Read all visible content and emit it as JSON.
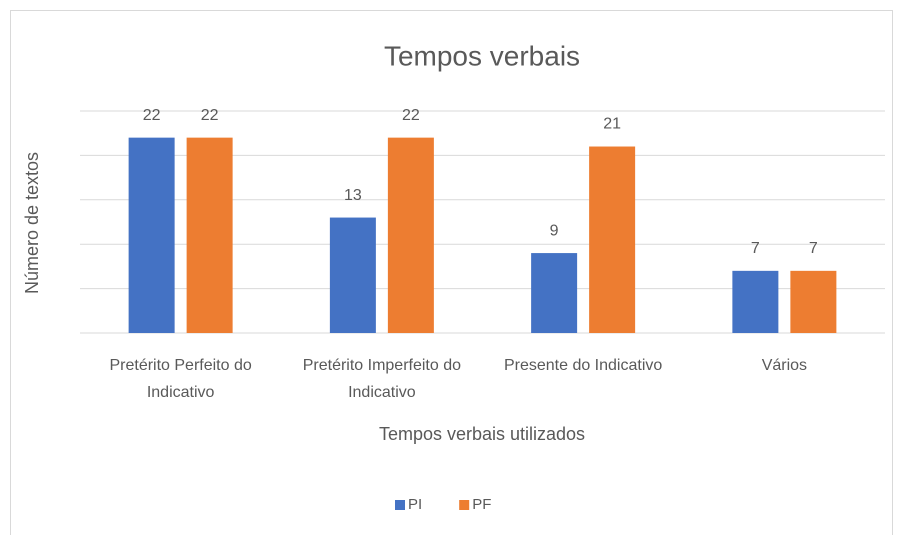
{
  "chart_data": {
    "type": "bar",
    "title": "Tempos verbais",
    "x_label": "Tempos verbais utilizados",
    "y_label": "Número de textos",
    "categories": [
      "Pretérito Perfeito do Indicativo",
      "Pretérito Imperfeito do Indicativo",
      "Presente do Indicativo",
      "Vários"
    ],
    "series": [
      {
        "name": "PI",
        "color": "#4472c4",
        "values": [
          22,
          13,
          9,
          7
        ]
      },
      {
        "name": "PF",
        "color": "#ed7d31",
        "values": [
          22,
          22,
          21,
          7
        ]
      }
    ],
    "ylim": [
      0,
      25
    ],
    "yticks": [
      0,
      5,
      10,
      15,
      20,
      25
    ],
    "grid": true,
    "ytick_labels": false,
    "legend": "bottom"
  }
}
